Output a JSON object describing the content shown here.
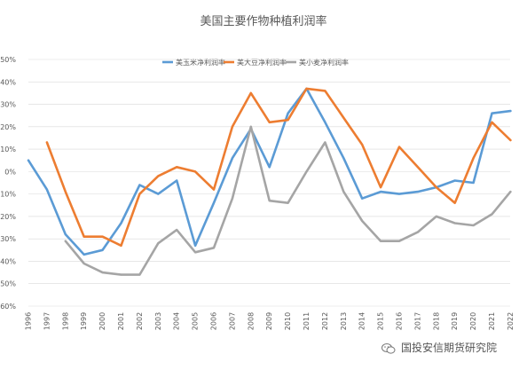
{
  "chart_data": {
    "type": "line",
    "title": "美国主要作物种植利润率",
    "categories": [
      "1996",
      "1997",
      "1998",
      "1999",
      "2000",
      "2001",
      "2002",
      "2003",
      "2004",
      "2005",
      "2006",
      "2007",
      "2008",
      "2009",
      "2010",
      "2011",
      "2012",
      "2013",
      "2014",
      "2015",
      "2016",
      "2017",
      "2018",
      "2019",
      "2020",
      "2021",
      "2022"
    ],
    "ylim": [
      -60,
      50
    ],
    "yticks": [
      "50%",
      "40%",
      "30%",
      "20%",
      "10%",
      "0%",
      "-10%",
      "-20%",
      "-30%",
      "-40%",
      "-50%",
      "-60%"
    ],
    "ytick_values": [
      50,
      40,
      30,
      20,
      10,
      0,
      -10,
      -20,
      -30,
      -40,
      -50,
      -60
    ],
    "grid": true,
    "legend_position": "top",
    "series": [
      {
        "name": "美玉米净利润率",
        "color": "#5b9bd5",
        "values": [
          5,
          -8,
          -28,
          -37,
          -35,
          -23,
          -6,
          -10,
          -4,
          -33,
          -14,
          6,
          19,
          2,
          26,
          37,
          22,
          6,
          -12,
          -9,
          -10,
          -9,
          -7,
          -4,
          -5,
          26,
          27
        ]
      },
      {
        "name": "美大豆净利润率",
        "color": "#ed7d31",
        "values": [
          null,
          13,
          -9,
          -29,
          -29,
          -33,
          -10,
          -2,
          2,
          0,
          -8,
          20,
          35,
          22,
          23,
          37,
          36,
          24,
          12,
          -7,
          11,
          2,
          -7,
          -14,
          6,
          22,
          14
        ]
      },
      {
        "name": "美小麦净利润率",
        "color": "#a5a5a5",
        "values": [
          null,
          null,
          -31,
          -41,
          -45,
          -46,
          -46,
          -32,
          -26,
          -36,
          -34,
          -12,
          20,
          -13,
          -14,
          0,
          13,
          -9,
          -22,
          -31,
          -31,
          -27,
          -20,
          -23,
          -24,
          -19,
          -9
        ]
      }
    ]
  },
  "watermark": {
    "text": "国投安信期货研究院",
    "icon": "wechat-icon"
  }
}
